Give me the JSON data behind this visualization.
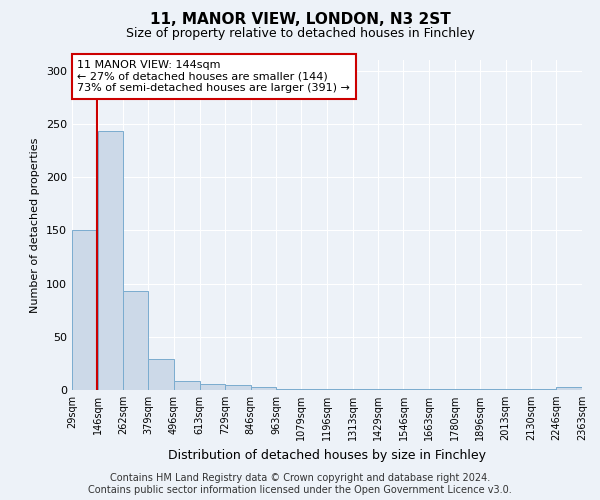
{
  "title": "11, MANOR VIEW, LONDON, N3 2ST",
  "subtitle": "Size of property relative to detached houses in Finchley",
  "xlabel": "Distribution of detached houses by size in Finchley",
  "ylabel": "Number of detached properties",
  "bin_edges": [
    29,
    146,
    262,
    379,
    496,
    613,
    729,
    846,
    963,
    1079,
    1196,
    1313,
    1429,
    1546,
    1663,
    1780,
    1896,
    2013,
    2130,
    2246,
    2363
  ],
  "counts": [
    150,
    243,
    93,
    29,
    8,
    6,
    5,
    3,
    1,
    1,
    1,
    1,
    1,
    1,
    1,
    1,
    1,
    1,
    1,
    3
  ],
  "bar_color": "#ccd9e8",
  "bar_edge_color": "#7aaccf",
  "property_line_x": 144,
  "property_line_color": "#cc0000",
  "annotation_text": "11 MANOR VIEW: 144sqm\n← 27% of detached houses are smaller (144)\n73% of semi-detached houses are larger (391) →",
  "annotation_box_color": "#ffffff",
  "annotation_box_edge": "#cc0000",
  "ylim": [
    0,
    310
  ],
  "yticks": [
    0,
    50,
    100,
    150,
    200,
    250,
    300
  ],
  "footer_line1": "Contains HM Land Registry data © Crown copyright and database right 2024.",
  "footer_line2": "Contains public sector information licensed under the Open Government Licence v3.0.",
  "background_color": "#edf2f8",
  "grid_color": "#ffffff",
  "title_fontsize": 11,
  "subtitle_fontsize": 9,
  "ylabel_fontsize": 8,
  "xlabel_fontsize": 9,
  "tick_label_fontsize": 7,
  "annotation_fontsize": 8,
  "footer_fontsize": 7
}
